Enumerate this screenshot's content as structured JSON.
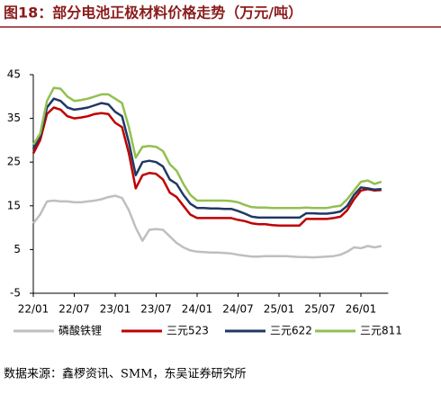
{
  "chart_data": {
    "type": "line",
    "title": "图18：部分电池正极材料价格走势（万元/吨）",
    "source": "数据来源：鑫椤资讯、SMM，东吴证券研究所",
    "categories": [
      "22/01",
      null,
      null,
      null,
      null,
      null,
      "22/07",
      null,
      null,
      null,
      null,
      null,
      "23/01",
      null,
      null,
      null,
      null,
      null,
      "23/07",
      null,
      null,
      null,
      null,
      null,
      "24/01",
      null,
      null,
      null,
      null,
      null,
      "24/07",
      null,
      null,
      null,
      null,
      null,
      "25/01",
      null,
      null,
      null,
      null,
      null,
      "25/07",
      null,
      null,
      null,
      null,
      null,
      "26/01",
      null,
      null,
      null
    ],
    "ylim": [
      -5,
      45
    ],
    "yticks": [
      -5,
      5,
      15,
      25,
      35,
      45
    ],
    "grid": false,
    "legend": "bottom",
    "series": [
      {
        "name": "磷酸铁锂",
        "color": "#bfbfbf",
        "values": [
          11,
          13,
          16,
          16.2,
          16,
          16,
          15.8,
          15.8,
          16,
          16.2,
          16.5,
          17,
          17.3,
          16.8,
          14,
          10,
          7,
          9.5,
          9.7,
          9.5,
          8,
          6.5,
          5.5,
          4.8,
          4.5,
          4.4,
          4.3,
          4.3,
          4.2,
          4.1,
          3.8,
          3.6,
          3.4,
          3.4,
          3.5,
          3.5,
          3.5,
          3.5,
          3.4,
          3.3,
          3.3,
          3.2,
          3.3,
          3.4,
          3.5,
          3.8,
          4.5,
          5.5,
          5.3,
          5.8,
          5.5,
          5.8
        ]
      },
      {
        "name": "三元523",
        "color": "#c00000",
        "values": [
          27,
          30,
          36,
          37.5,
          37,
          35.5,
          35,
          35.2,
          35.5,
          36,
          36.2,
          36,
          34,
          33,
          27,
          19,
          22,
          22.5,
          22.3,
          21,
          18,
          17,
          15,
          13,
          12.2,
          12.2,
          12.2,
          12.2,
          12.2,
          12.2,
          11.8,
          11.5,
          11,
          10.8,
          10.8,
          10.6,
          10.5,
          10.5,
          10.5,
          10.5,
          12,
          12,
          12,
          12,
          12.2,
          12.5,
          14,
          16.5,
          18.5,
          18.8,
          18.5,
          18.6
        ]
      },
      {
        "name": "三元622",
        "color": "#1f3864",
        "values": [
          28,
          31,
          37.5,
          39.5,
          39,
          37.5,
          37,
          37.2,
          37.5,
          38,
          38.5,
          38.2,
          36.5,
          35.5,
          29.5,
          22,
          25,
          25.3,
          25,
          24,
          21,
          20,
          17.5,
          15.5,
          14.5,
          14.5,
          14.4,
          14.4,
          14.3,
          14.3,
          13.8,
          13.2,
          12.5,
          12.3,
          12.3,
          12.3,
          12.3,
          12.3,
          12.3,
          12.3,
          13.3,
          13.3,
          13.2,
          13.2,
          13.4,
          13.7,
          15,
          17.5,
          19.2,
          19,
          18.7,
          18.8
        ]
      },
      {
        "name": "三元811",
        "color": "#92c050",
        "values": [
          29,
          31.5,
          39,
          42,
          41.8,
          40,
          39,
          39.2,
          39.5,
          40,
          40.5,
          40.5,
          39.5,
          38.5,
          33,
          26,
          28.5,
          28.7,
          28.5,
          27.5,
          24.5,
          23,
          20,
          17.5,
          16.2,
          16.2,
          16.2,
          16.2,
          16.2,
          16.1,
          15.8,
          15.2,
          14.7,
          14.6,
          14.6,
          14.5,
          14.5,
          14.5,
          14.5,
          14.5,
          14.6,
          14.5,
          14.5,
          14.5,
          14.8,
          15,
          16.5,
          18.5,
          20.5,
          20.8,
          20,
          20.5
        ]
      }
    ]
  }
}
